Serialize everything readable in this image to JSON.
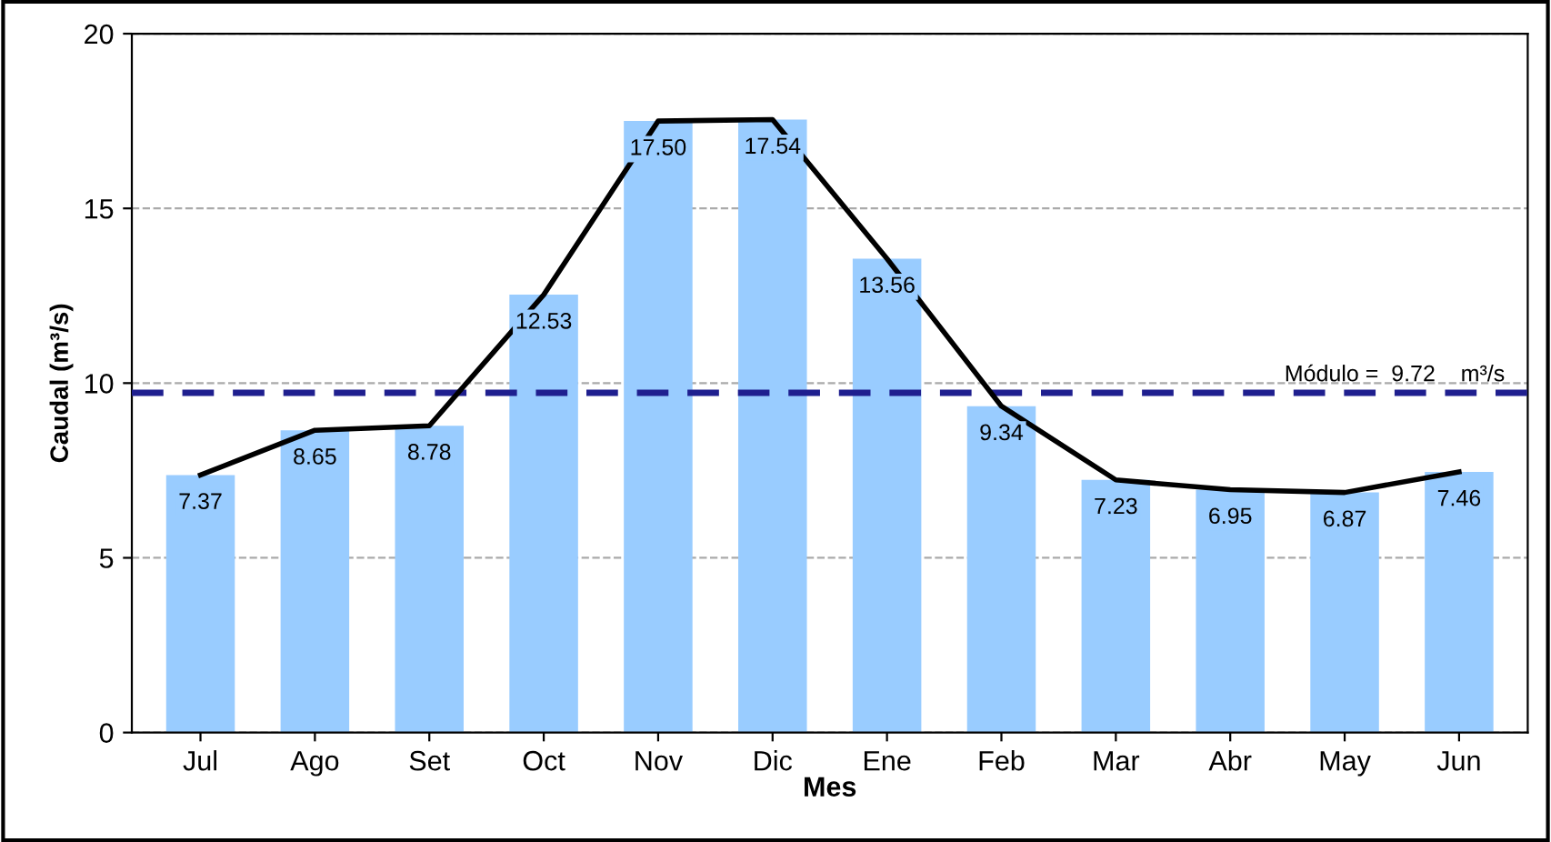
{
  "chart_data": {
    "type": "bar",
    "xlabel": "Mes",
    "ylabel": "Caudal (m³/s)",
    "categories": [
      "Jul",
      "Ago",
      "Set",
      "Oct",
      "Nov",
      "Dic",
      "Ene",
      "Feb",
      "Mar",
      "Abr",
      "May",
      "Jun"
    ],
    "series": [
      {
        "color": "#99ccff",
        "values": [
          7.37,
          8.65,
          8.78,
          12.53,
          17.5,
          17.54,
          13.56,
          9.34,
          7.23,
          6.95,
          6.87,
          7.46
        ],
        "value_labels": [
          "7.37",
          "8.65",
          "8.78",
          "12.53",
          "17.50",
          "17.54",
          "13.56",
          "9.34",
          "7.23",
          "6.95",
          "6.87",
          "7.46"
        ]
      },
      {
        "type": "line",
        "color": "#000000",
        "values": [
          7.37,
          8.65,
          8.78,
          12.53,
          17.5,
          17.54,
          13.56,
          9.34,
          7.23,
          6.95,
          6.87,
          7.46
        ]
      }
    ],
    "ylim": [
      0,
      20
    ],
    "yticks": [
      0,
      5,
      10,
      15,
      20
    ],
    "grid": "y",
    "ref_lines": [
      {
        "axis": "y",
        "value": 9.72,
        "label": "Módulo =  9.72    m³/s",
        "color": "#1f1f8f",
        "line_style": "dashed"
      }
    ]
  }
}
